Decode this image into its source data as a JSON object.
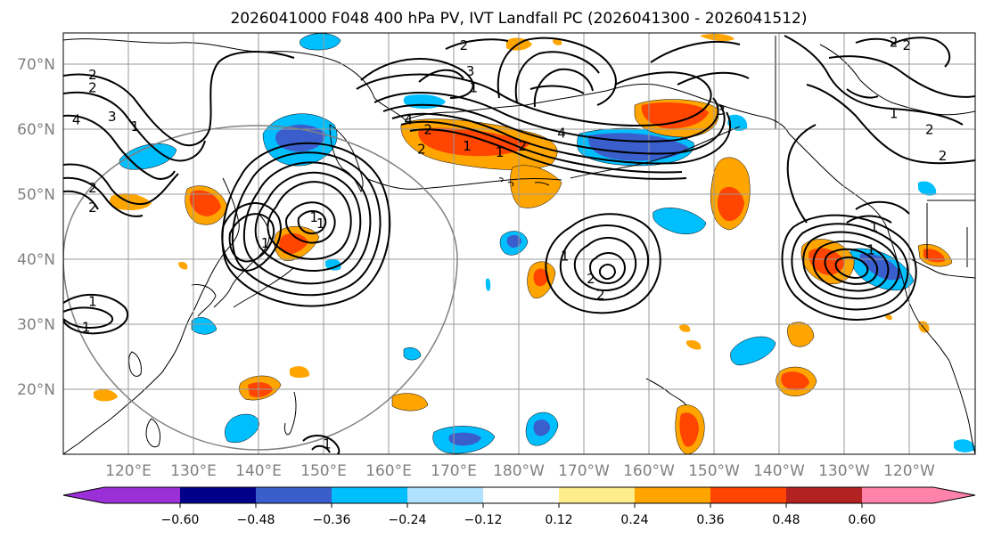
{
  "title": "2026041000 F048 400 hPa PV, IVT Landfall PC (2026041300 - 2026041512)",
  "lat_labels": [
    "70°N",
    "60°N",
    "50°N",
    "40°N",
    "30°N",
    "20°N"
  ],
  "lon_labels": [
    "120°E",
    "130°E",
    "140°E",
    "150°E",
    "160°E",
    "170°E",
    "180°W",
    "170°W",
    "160°W",
    "150°W",
    "140°W",
    "130°W",
    "120°W"
  ],
  "colorbar": {
    "ticks": [
      "−0.60",
      "−0.48",
      "−0.36",
      "−0.24",
      "−0.12",
      "0.12",
      "0.24",
      "0.36",
      "0.48",
      "0.60"
    ],
    "colors": [
      "#9b30d9",
      "#00008b",
      "#3a5fcd",
      "#00bfff",
      "#b0e2ff",
      "#ffffff",
      "#ffec8b",
      "#ffa500",
      "#ff4500",
      "#b22222",
      "#ff82ab"
    ]
  },
  "map": {
    "lat_range": [
      10,
      75
    ],
    "lon_range": [
      110,
      250
    ],
    "gridline_lats": [
      20,
      30,
      40,
      50,
      60,
      70
    ],
    "gridline_lons": [
      120,
      130,
      140,
      150,
      160,
      170,
      180,
      190,
      200,
      210,
      220,
      230,
      240
    ],
    "contour_labels": [
      {
        "text": "2",
        "lon": 114.5,
        "lat": 66.5
      },
      {
        "text": "2",
        "lon": 114.5,
        "lat": 68.5
      },
      {
        "text": "3",
        "lon": 117.5,
        "lat": 62.0
      },
      {
        "text": "1",
        "lon": 121.0,
        "lat": 60.5
      },
      {
        "text": "4",
        "lon": 112.0,
        "lat": 61.5
      },
      {
        "text": "2",
        "lon": 114.5,
        "lat": 51.0
      },
      {
        "text": "2",
        "lon": 114.5,
        "lat": 48.0
      },
      {
        "text": "1",
        "lon": 114.5,
        "lat": 33.5
      },
      {
        "text": "1",
        "lon": 113.5,
        "lat": 29.5
      },
      {
        "text": "2",
        "lon": 171.5,
        "lat": 73.0
      },
      {
        "text": "3",
        "lon": 172.5,
        "lat": 69.0
      },
      {
        "text": "1",
        "lon": 173.0,
        "lat": 66.5
      },
      {
        "text": "4",
        "lon": 163.0,
        "lat": 61.5
      },
      {
        "text": "2",
        "lon": 166.0,
        "lat": 60.0
      },
      {
        "text": "2",
        "lon": 165.0,
        "lat": 57.0
      },
      {
        "text": "1",
        "lon": 172.0,
        "lat": 57.5
      },
      {
        "text": "4",
        "lon": 186.5,
        "lat": 59.5
      },
      {
        "text": "2",
        "lon": 180.5,
        "lat": 57.5
      },
      {
        "text": "1",
        "lon": 177.0,
        "lat": 56.5
      },
      {
        "text": "1",
        "lon": 187.0,
        "lat": 40.5
      },
      {
        "text": "2",
        "lon": 191.0,
        "lat": 37.0
      },
      {
        "text": "2",
        "lon": 192.5,
        "lat": 34.5
      },
      {
        "text": "3",
        "lon": 211.0,
        "lat": 63.0
      },
      {
        "text": "1",
        "lon": 149.5,
        "lat": 45.5
      },
      {
        "text": "1",
        "lon": 141.0,
        "lat": 42.5
      },
      {
        "text": "1",
        "lon": 148.5,
        "lat": 46.5
      },
      {
        "text": "1",
        "lon": 150.5,
        "lat": 11.5
      },
      {
        "text": "1",
        "lon": 237.5,
        "lat": 62.5
      },
      {
        "text": "2",
        "lon": 237.5,
        "lat": 73.5
      },
      {
        "text": "2",
        "lon": 239.5,
        "lat": 73.0
      },
      {
        "text": "2",
        "lon": 243.0,
        "lat": 60.0
      },
      {
        "text": "2",
        "lon": 245.0,
        "lat": 56.0
      },
      {
        "text": "1",
        "lon": 234.0,
        "lat": 41.5
      },
      {
        "text": "1",
        "lon": 234.5,
        "lat": 45.0
      }
    ]
  }
}
